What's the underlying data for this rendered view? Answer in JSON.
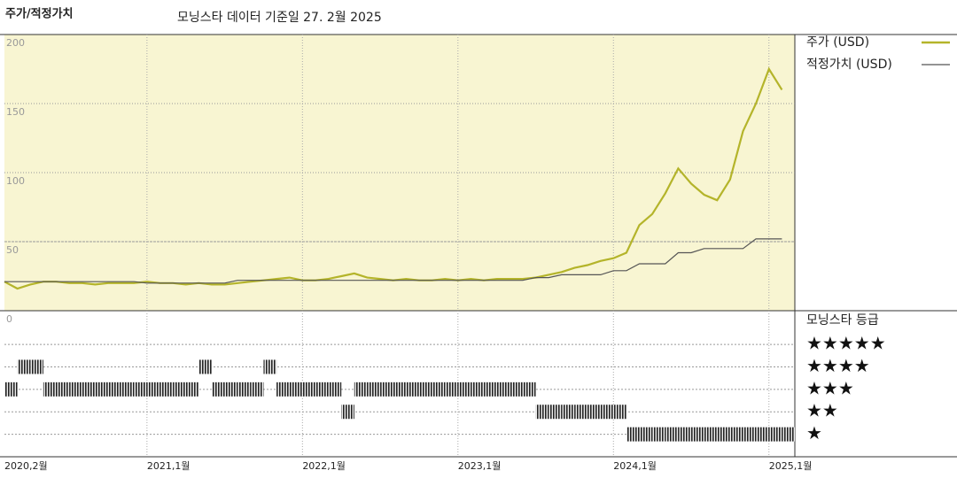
{
  "chart_data": [
    {
      "type": "line",
      "title": "주가/적정가치",
      "subtitle": "모닝스타 데이터 기준일 27. 2월 2025",
      "x": [
        "2020-02",
        "2020-03",
        "2020-04",
        "2020-05",
        "2020-06",
        "2020-07",
        "2020-08",
        "2020-09",
        "2020-10",
        "2020-11",
        "2020-12",
        "2021-01",
        "2021-02",
        "2021-03",
        "2021-04",
        "2021-05",
        "2021-06",
        "2021-07",
        "2021-08",
        "2021-09",
        "2021-10",
        "2021-11",
        "2021-12",
        "2022-01",
        "2022-02",
        "2022-03",
        "2022-04",
        "2022-05",
        "2022-06",
        "2022-07",
        "2022-08",
        "2022-09",
        "2022-10",
        "2022-11",
        "2022-12",
        "2023-01",
        "2023-02",
        "2023-03",
        "2023-04",
        "2023-05",
        "2023-06",
        "2023-07",
        "2023-08",
        "2023-09",
        "2023-10",
        "2023-11",
        "2023-12",
        "2024-01",
        "2024-02",
        "2024-03",
        "2024-04",
        "2024-05",
        "2024-06",
        "2024-07",
        "2024-08",
        "2024-09",
        "2024-10",
        "2024-11",
        "2024-12",
        "2025-01",
        "2025-02"
      ],
      "series": [
        {
          "name": "주가 (USD)",
          "color": "#b4b42a",
          "values": [
            21,
            16,
            19,
            21,
            21,
            20,
            20,
            19,
            20,
            20,
            20,
            21,
            20,
            20,
            19,
            20,
            19,
            19,
            20,
            21,
            22,
            23,
            24,
            22,
            22,
            23,
            25,
            27,
            24,
            23,
            22,
            23,
            22,
            22,
            23,
            22,
            23,
            22,
            23,
            23,
            23,
            24,
            26,
            28,
            31,
            33,
            36,
            38,
            42,
            62,
            70,
            85,
            103,
            92,
            84,
            80,
            95,
            130,
            150,
            175,
            160
          ]
        },
        {
          "name": "적정가치 (USD)",
          "color": "#555555",
          "values": [
            21,
            21,
            21,
            21,
            21,
            21,
            21,
            21,
            21,
            21,
            21,
            20,
            20,
            20,
            20,
            20,
            20,
            20,
            22,
            22,
            22,
            22,
            22,
            22,
            22,
            22,
            22,
            22,
            22,
            22,
            22,
            22,
            22,
            22,
            22,
            22,
            22,
            22,
            22,
            22,
            22,
            24,
            24,
            26,
            26,
            26,
            26,
            29,
            29,
            34,
            34,
            34,
            42,
            42,
            45,
            45,
            45,
            45,
            52,
            52,
            52
          ]
        }
      ],
      "xlim": [
        "2020-02",
        "2025-03"
      ],
      "xticks": [
        {
          "value": "2020-02",
          "label": "2020,2월"
        },
        {
          "value": "2021-01",
          "label": "2021,1월"
        },
        {
          "value": "2022-01",
          "label": "2022,1월"
        },
        {
          "value": "2023-01",
          "label": "2023,1월"
        },
        {
          "value": "2024-01",
          "label": "2024,1월"
        },
        {
          "value": "2025-01",
          "label": "2025,1월"
        }
      ],
      "ylim": [
        0,
        200
      ],
      "yticks": [
        0,
        50,
        100,
        150,
        200
      ],
      "grid": true
    },
    {
      "type": "rating",
      "title": "모닝스타 등급",
      "x": [
        "2020-02",
        "2020-03",
        "2020-04",
        "2020-05",
        "2020-06",
        "2020-07",
        "2020-08",
        "2020-09",
        "2020-10",
        "2020-11",
        "2020-12",
        "2021-01",
        "2021-02",
        "2021-03",
        "2021-04",
        "2021-05",
        "2021-06",
        "2021-07",
        "2021-08",
        "2021-09",
        "2021-10",
        "2021-11",
        "2021-12",
        "2022-01",
        "2022-02",
        "2022-03",
        "2022-04",
        "2022-05",
        "2022-06",
        "2022-07",
        "2022-08",
        "2022-09",
        "2022-10",
        "2022-11",
        "2022-12",
        "2023-01",
        "2023-02",
        "2023-03",
        "2023-04",
        "2023-05",
        "2023-06",
        "2023-07",
        "2023-08",
        "2023-09",
        "2023-10",
        "2023-11",
        "2023-12",
        "2024-01",
        "2024-02",
        "2024-03",
        "2024-04",
        "2024-05",
        "2024-06",
        "2024-07",
        "2024-08",
        "2024-09",
        "2024-10",
        "2024-11",
        "2024-12",
        "2025-01",
        "2025-02"
      ],
      "values": [
        3,
        4,
        4,
        3,
        3,
        3,
        3,
        3,
        3,
        3,
        3,
        3,
        3,
        3,
        3,
        4,
        3,
        3,
        3,
        3,
        4,
        3,
        3,
        3,
        3,
        3,
        2,
        3,
        3,
        3,
        3,
        3,
        3,
        3,
        3,
        3,
        3,
        3,
        3,
        3,
        3,
        2,
        2,
        2,
        2,
        2,
        2,
        2,
        1,
        1,
        1,
        1,
        1,
        1,
        1,
        1,
        1,
        1,
        1,
        1,
        1
      ],
      "levels": [
        5,
        4,
        3,
        2,
        1
      ],
      "level_labels": [
        "★★★★★",
        "★★★★",
        "★★★",
        "★★",
        "★"
      ],
      "xlim": [
        "2020-02",
        "2025-03"
      ],
      "ylim": [
        0,
        6.5
      ]
    }
  ]
}
